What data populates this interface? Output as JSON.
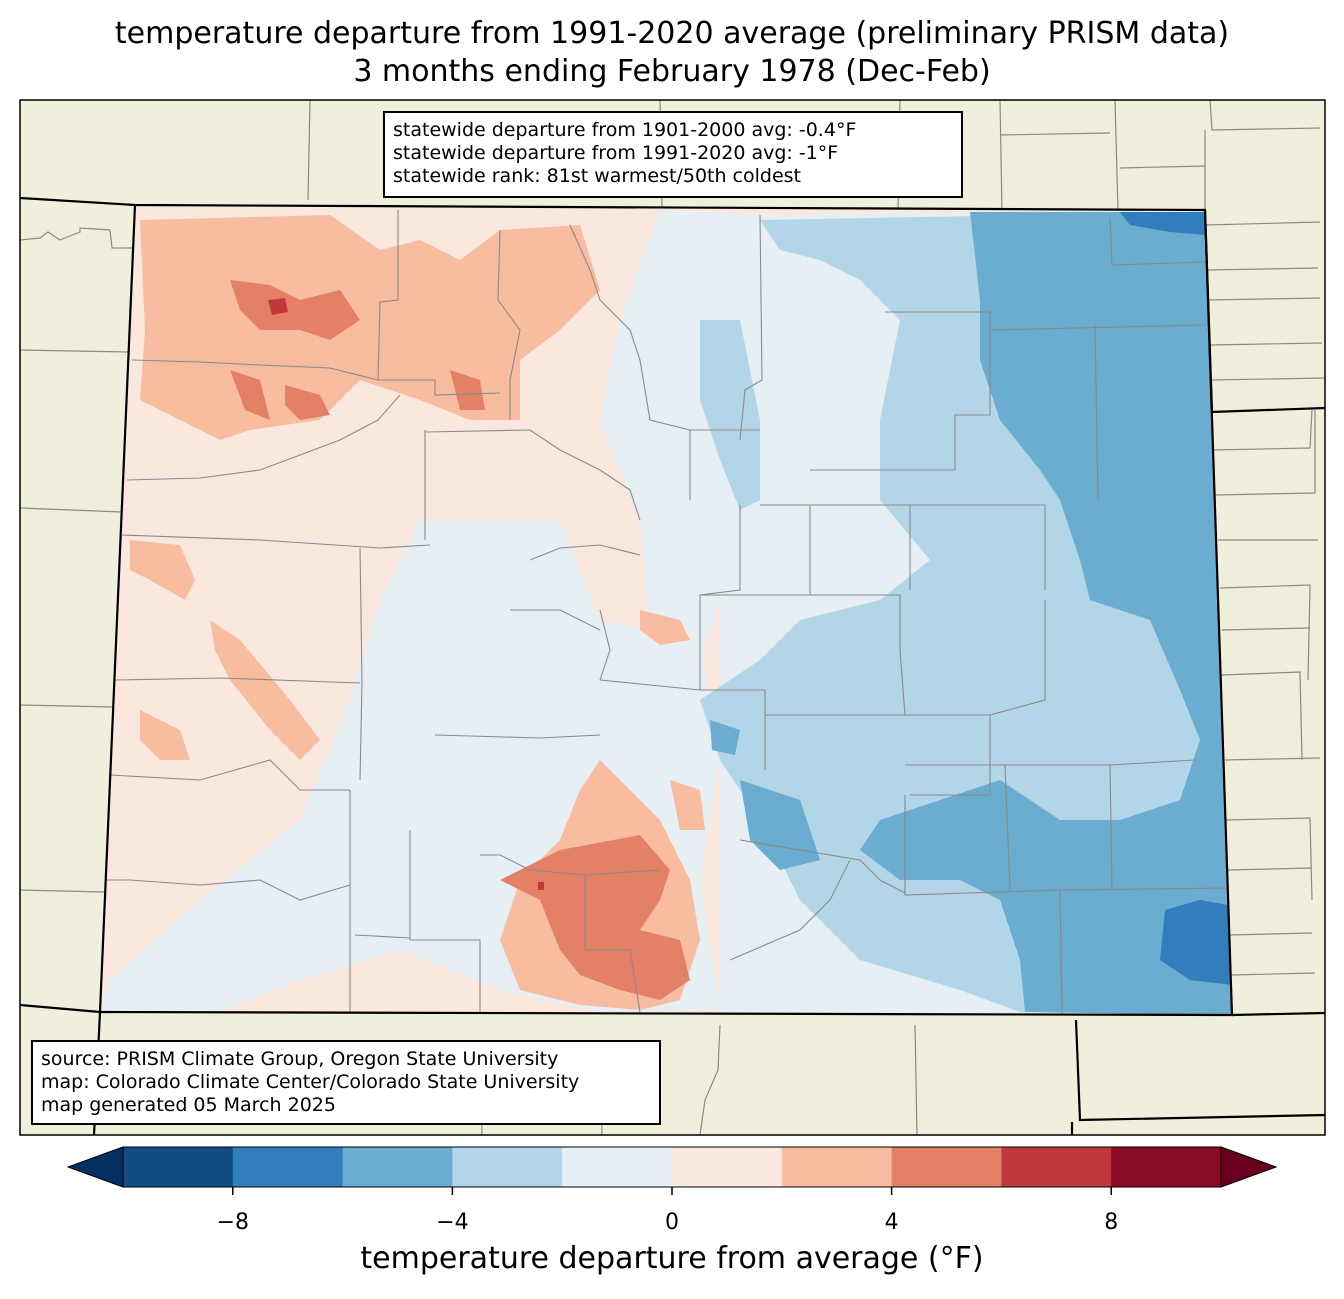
{
  "title": {
    "line1": "temperature departure from 1991-2020 average (preliminary PRISM data)",
    "line2": "3 months ending February 1978 (Dec-Feb)"
  },
  "stats": {
    "line1": "statewide departure from 1901-2000 avg: -0.4°F",
    "line2": "statewide departure from 1991-2020 avg: -1°F",
    "line3": "statewide rank: 81st warmest/50th coldest"
  },
  "source": {
    "line1": "source: PRISM Climate Group, Oregon State University",
    "line2": "map: Colorado Climate Center/Colorado State University",
    "line3": "map generated 05 March 2025"
  },
  "colors": {
    "land": "#f0efdc",
    "county_line": "#8a8a8a",
    "state_line": "#000000"
  },
  "colorbar": {
    "label": "temperature departure from average (°F)",
    "min": -10,
    "max": 10,
    "ticks": [
      {
        "value": -8,
        "label": "−8"
      },
      {
        "value": -4,
        "label": "−4"
      },
      {
        "value": 0,
        "label": "0"
      },
      {
        "value": 4,
        "label": "4"
      },
      {
        "value": 8,
        "label": "8"
      }
    ],
    "under_color": "#053061",
    "over_color": "#67001f",
    "bins": [
      {
        "from": -10,
        "to": -8,
        "color": "#134b87"
      },
      {
        "from": -8,
        "to": -6,
        "color": "#327dbb"
      },
      {
        "from": -6,
        "to": -4,
        "color": "#6bacd1"
      },
      {
        "from": -4,
        "to": -2,
        "color": "#b2d5e7"
      },
      {
        "from": -2,
        "to": 0,
        "color": "#e6eff4"
      },
      {
        "from": 0,
        "to": 2,
        "color": "#fae8de"
      },
      {
        "from": 2,
        "to": 4,
        "color": "#f8bca1"
      },
      {
        "from": 4,
        "to": 6,
        "color": "#e48066"
      },
      {
        "from": 6,
        "to": 8,
        "color": "#c1383c"
      },
      {
        "from": 8,
        "to": 10,
        "color": "#8a0b25"
      }
    ]
  }
}
